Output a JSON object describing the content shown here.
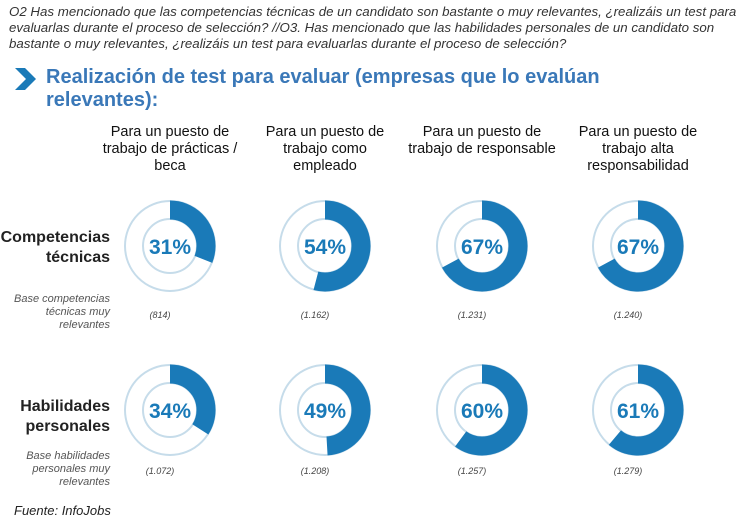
{
  "question": "O2 Has mencionado que las competencias técnicas de un candidato son bastante o muy relevantes, ¿realizáis un test para evaluarlas durante el proceso de selección?  //O3. Has mencionado que las habilidades personales de un candidato son bastante o muy relevantes, ¿realizáis un test para evaluarlas durante el proceso de selección?",
  "source": "Fuente: InfoJobs",
  "colors": {
    "accent": "#1a7ab8",
    "ring": "#c6dcea",
    "title": "#3a78b8"
  },
  "chart_data": {
    "type": "donut",
    "title": "Realización de test para evaluar (empresas que lo evalúan relevantes):",
    "categories": [
      "Para un puesto de trabajo de prácticas / beca",
      "Para un puesto de trabajo como empleado",
      "Para un puesto de trabajo de responsable",
      "Para un puesto de trabajo alta responsabilidad"
    ],
    "series": [
      {
        "name": "Competencias técnicas",
        "base_label": "Base competencias técnicas muy relevantes",
        "values": [
          31,
          54,
          67,
          67
        ],
        "labels": [
          "31%",
          "54%",
          "67%",
          "67%"
        ],
        "bases": [
          "(814)",
          "(1.162)",
          "(1.231)",
          "(1.240)"
        ]
      },
      {
        "name": "Habilidades personales",
        "base_label": "Base habilidades personales muy relevantes",
        "values": [
          34,
          49,
          60,
          61
        ],
        "labels": [
          "34%",
          "49%",
          "60%",
          "61%"
        ],
        "bases": [
          "(1.072)",
          "(1.208)",
          "(1.257)",
          "(1.279)"
        ]
      }
    ]
  }
}
